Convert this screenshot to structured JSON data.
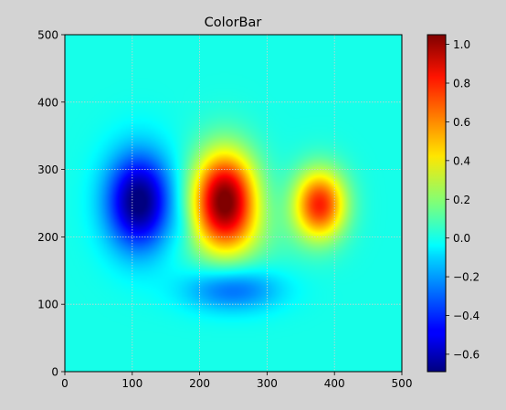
{
  "chart_data": {
    "type": "heatmap",
    "title": "ColorBar",
    "xlabel": "",
    "ylabel": "",
    "xlim": [
      0,
      500
    ],
    "ylim": [
      0,
      500
    ],
    "x_ticks": [
      "0",
      "100",
      "200",
      "300",
      "400",
      "500"
    ],
    "y_ticks": [
      "0",
      "100",
      "200",
      "300",
      "400",
      "500"
    ],
    "grid": true,
    "colormap": "jet",
    "colorbar": {
      "range": [
        -0.69,
        1.05
      ],
      "ticks": [
        {
          "value": -0.6,
          "label": "−0.6"
        },
        {
          "value": -0.4,
          "label": "−0.4"
        },
        {
          "value": -0.2,
          "label": "−0.2"
        },
        {
          "value": 0.0,
          "label": "0.0"
        },
        {
          "value": 0.2,
          "label": "0.2"
        },
        {
          "value": 0.4,
          "label": "0.4"
        },
        {
          "value": 0.6,
          "label": "0.6"
        },
        {
          "value": 0.8,
          "label": "0.8"
        },
        {
          "value": 1.0,
          "label": "1.0"
        }
      ]
    },
    "features": [
      {
        "kind": "minimum",
        "x": 110,
        "y": 250,
        "value": -0.69
      },
      {
        "kind": "maximum",
        "x": 235,
        "y": 250,
        "value": 1.05
      },
      {
        "kind": "maximum",
        "x": 380,
        "y": 250,
        "value": 0.8
      },
      {
        "kind": "minimum",
        "x": 245,
        "y": 125,
        "value": -0.28
      }
    ]
  }
}
